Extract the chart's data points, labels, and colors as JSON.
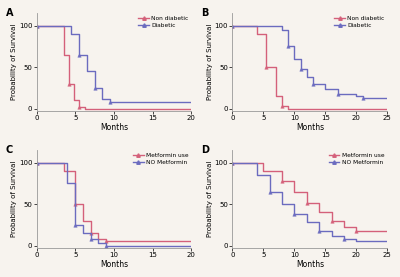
{
  "panel_A": {
    "label": "A",
    "xlabel": "Months",
    "ylabel": "Probability of Survival",
    "xlim": [
      0,
      20
    ],
    "ylim": [
      -3,
      115
    ],
    "xticks": [
      0,
      5,
      10,
      15,
      20
    ],
    "yticks": [
      0,
      50,
      100
    ],
    "legend_labels": [
      "Non diabetic",
      "Diabetic"
    ],
    "line1_color": "#d4607a",
    "line2_color": "#6b6bbf",
    "line1_x": [
      0,
      3.5,
      3.5,
      4.2,
      4.2,
      4.8,
      4.8,
      5.5,
      5.5,
      6.2,
      6.2,
      20
    ],
    "line1_y": [
      100,
      100,
      65,
      65,
      30,
      30,
      10,
      10,
      2,
      2,
      0,
      0
    ],
    "line2_x": [
      0,
      4.5,
      4.5,
      5.5,
      5.5,
      6.5,
      6.5,
      7.5,
      7.5,
      8.5,
      8.5,
      9.5,
      9.5,
      16,
      16,
      20
    ],
    "line2_y": [
      100,
      100,
      90,
      90,
      65,
      65,
      45,
      45,
      25,
      25,
      12,
      12,
      8,
      8,
      8,
      8
    ]
  },
  "panel_B": {
    "label": "B",
    "xlabel": "Months",
    "ylabel": "Probability of Survival",
    "xlim": [
      0,
      25
    ],
    "ylim": [
      -3,
      115
    ],
    "xticks": [
      0,
      5,
      10,
      15,
      20,
      25
    ],
    "yticks": [
      0,
      50,
      100
    ],
    "legend_labels": [
      "Non diabetic",
      "Diabetic"
    ],
    "line1_color": "#d4607a",
    "line2_color": "#6b6bbf",
    "line1_x": [
      0,
      4,
      4,
      5.5,
      5.5,
      7,
      7,
      8,
      8,
      9,
      9,
      25
    ],
    "line1_y": [
      100,
      100,
      90,
      90,
      50,
      50,
      15,
      15,
      3,
      3,
      0,
      0
    ],
    "line2_x": [
      0,
      8,
      8,
      9,
      9,
      10,
      10,
      11,
      11,
      12,
      12,
      13,
      13,
      15,
      15,
      17,
      17,
      20,
      20,
      21,
      21,
      25
    ],
    "line2_y": [
      100,
      100,
      95,
      95,
      75,
      75,
      60,
      60,
      48,
      48,
      38,
      38,
      30,
      30,
      23,
      23,
      18,
      18,
      15,
      15,
      13,
      13
    ]
  },
  "panel_C": {
    "label": "C",
    "xlabel": "Months",
    "ylabel": "Probability of Survival",
    "xlim": [
      0,
      20
    ],
    "ylim": [
      -3,
      115
    ],
    "xticks": [
      0,
      5,
      10,
      15,
      20
    ],
    "yticks": [
      0,
      50,
      100
    ],
    "legend_labels": [
      "Metformin use",
      "NO Metformin"
    ],
    "line1_color": "#d4607a",
    "line2_color": "#6b6bbf",
    "line1_x": [
      0,
      3.5,
      3.5,
      5,
      5,
      6,
      6,
      7,
      7,
      8,
      8,
      9,
      9,
      16,
      16,
      20
    ],
    "line1_y": [
      100,
      100,
      90,
      90,
      50,
      50,
      30,
      30,
      15,
      15,
      8,
      8,
      6,
      6,
      6,
      6
    ],
    "line2_x": [
      0,
      4,
      4,
      5,
      5,
      6,
      6,
      7,
      7,
      8,
      8,
      9,
      9,
      20
    ],
    "line2_y": [
      100,
      100,
      75,
      75,
      25,
      25,
      15,
      15,
      8,
      8,
      3,
      3,
      0,
      0
    ]
  },
  "panel_D": {
    "label": "D",
    "xlabel": "Months",
    "ylabel": "Probability of Survival",
    "xlim": [
      0,
      25
    ],
    "ylim": [
      -3,
      115
    ],
    "xticks": [
      0,
      5,
      10,
      15,
      20,
      25
    ],
    "yticks": [
      0,
      50,
      100
    ],
    "legend_labels": [
      "Metformin use",
      "NO Metformin"
    ],
    "line1_color": "#d4607a",
    "line2_color": "#6b6bbf",
    "line1_x": [
      0,
      5,
      5,
      8,
      8,
      10,
      10,
      12,
      12,
      14,
      14,
      16,
      16,
      18,
      18,
      20,
      20,
      21,
      21,
      25
    ],
    "line1_y": [
      100,
      100,
      90,
      90,
      78,
      78,
      65,
      65,
      52,
      52,
      40,
      40,
      30,
      30,
      22,
      22,
      18,
      18,
      18,
      18
    ],
    "line2_x": [
      0,
      4,
      4,
      6,
      6,
      8,
      8,
      10,
      10,
      12,
      12,
      14,
      14,
      16,
      16,
      18,
      18,
      20,
      20,
      25
    ],
    "line2_y": [
      100,
      100,
      85,
      85,
      65,
      65,
      50,
      50,
      38,
      38,
      28,
      28,
      18,
      18,
      12,
      12,
      8,
      8,
      6,
      6
    ]
  },
  "background_color": "#f7f3ee",
  "marker": "^",
  "markersize": 2.5,
  "linewidth": 1.0,
  "spine_color": "#999999",
  "tick_labelsize": 5,
  "axis_labelsize": 5,
  "xlabel_fontsize": 5.5,
  "legend_fontsize": 4.2,
  "panel_label_fontsize": 7
}
